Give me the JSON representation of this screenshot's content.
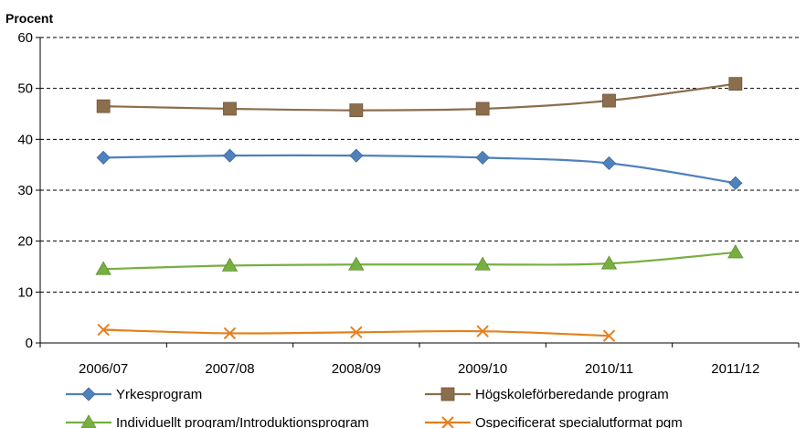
{
  "chart_data": {
    "type": "line",
    "title": "",
    "ylabel": "Procent",
    "xlabel": "",
    "categories": [
      "2006/07",
      "2007/08",
      "2008/09",
      "2009/10",
      "2010/11",
      "2011/12"
    ],
    "ylim": [
      0,
      60
    ],
    "yticks": [
      0,
      10,
      20,
      30,
      40,
      50,
      60
    ],
    "grid": "horizontal dashed",
    "legend_position": "bottom",
    "series": [
      {
        "name": "Yrkesprogram",
        "color": "#4f81bd",
        "marker": "diamond",
        "values": [
          36.4,
          36.8,
          36.8,
          36.4,
          35.3,
          31.4
        ]
      },
      {
        "name": "Högskoleförberedande program",
        "color": "#8c6e4d",
        "marker": "square",
        "values": [
          46.5,
          46.0,
          45.7,
          46.0,
          47.6,
          50.9
        ]
      },
      {
        "name": "Individuellt program/Introduktionsprogram",
        "color": "#77b041",
        "marker": "triangle",
        "values": [
          14.5,
          15.2,
          15.4,
          15.4,
          15.6,
          17.8
        ]
      },
      {
        "name": "Ospecificerat specialutformat pgm",
        "color": "#e4801f",
        "marker": "x",
        "values": [
          2.6,
          1.9,
          2.1,
          2.3,
          1.4,
          null
        ]
      }
    ]
  }
}
